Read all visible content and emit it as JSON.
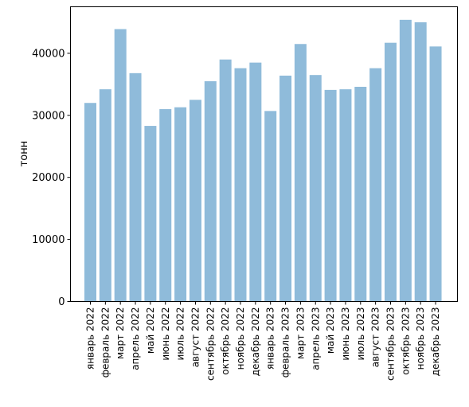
{
  "chart_data": {
    "type": "bar",
    "title": "",
    "xlabel": "",
    "ylabel": "тонн",
    "ylim": [
      0,
      47500
    ],
    "yticks": [
      0,
      10000,
      20000,
      30000,
      40000
    ],
    "ytick_labels": [
      "0",
      "10000",
      "20000",
      "30000",
      "40000"
    ],
    "grid": false,
    "legend": "none",
    "bar_color": "#8fbbda",
    "categories": [
      "январь 2022",
      "февраль 2022",
      "март 2022",
      "апрель 2022",
      "май 2022",
      "июнь 2022",
      "июль 2022",
      "август 2022",
      "сентябрь 2022",
      "октябрь 2022",
      "ноябрь 2022",
      "декабрь 2022",
      "январь 2023",
      "февраль 2023",
      "март 2023",
      "апрель 2023",
      "май 2023",
      "июнь 2023",
      "июль 2023",
      "август 2023",
      "сентябрь 2023",
      "октябрь 2023",
      "ноябрь 2023",
      "декабрь 2023"
    ],
    "values": [
      32000,
      34200,
      43900,
      36800,
      28300,
      31000,
      31300,
      32500,
      35500,
      39000,
      37600,
      38500,
      30700,
      36400,
      41500,
      36500,
      34100,
      34200,
      34600,
      37600,
      41700,
      45400,
      45000,
      41100
    ]
  }
}
